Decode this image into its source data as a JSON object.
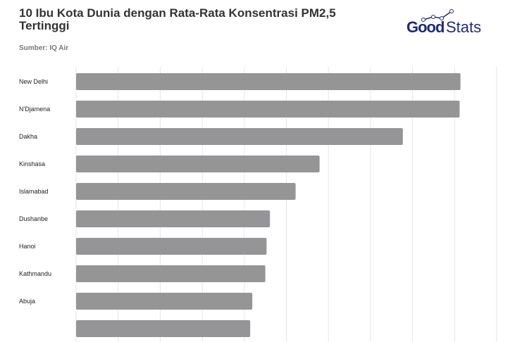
{
  "header": {
    "title": "10 Ibu Kota Dunia dengan Rata-Rata Konsentrasi PM2,5 Tertinggi",
    "source": "Sumber: IQ Air",
    "logo_text": "GoodStats"
  },
  "chart_data": {
    "type": "bar",
    "orientation": "horizontal",
    "title": "10 Ibu Kota Dunia dengan Rata-Rata Konsentrasi PM2,5 Tertinggi",
    "categories": [
      "New Delhi",
      "N'Djamena",
      "Dakha",
      "Kinshasa",
      "Islamabad",
      "Dushanbe",
      "Hanoi",
      "Kathmandu",
      "Abuja",
      ""
    ],
    "values": [
      91.4,
      91.2,
      77.7,
      57.9,
      52.2,
      46.1,
      45.3,
      45.0,
      41.9,
      41.4
    ],
    "xlim": [
      0,
      100
    ],
    "grid": true,
    "bar_color": "#959597",
    "grid_color": "#e6e6e6"
  }
}
